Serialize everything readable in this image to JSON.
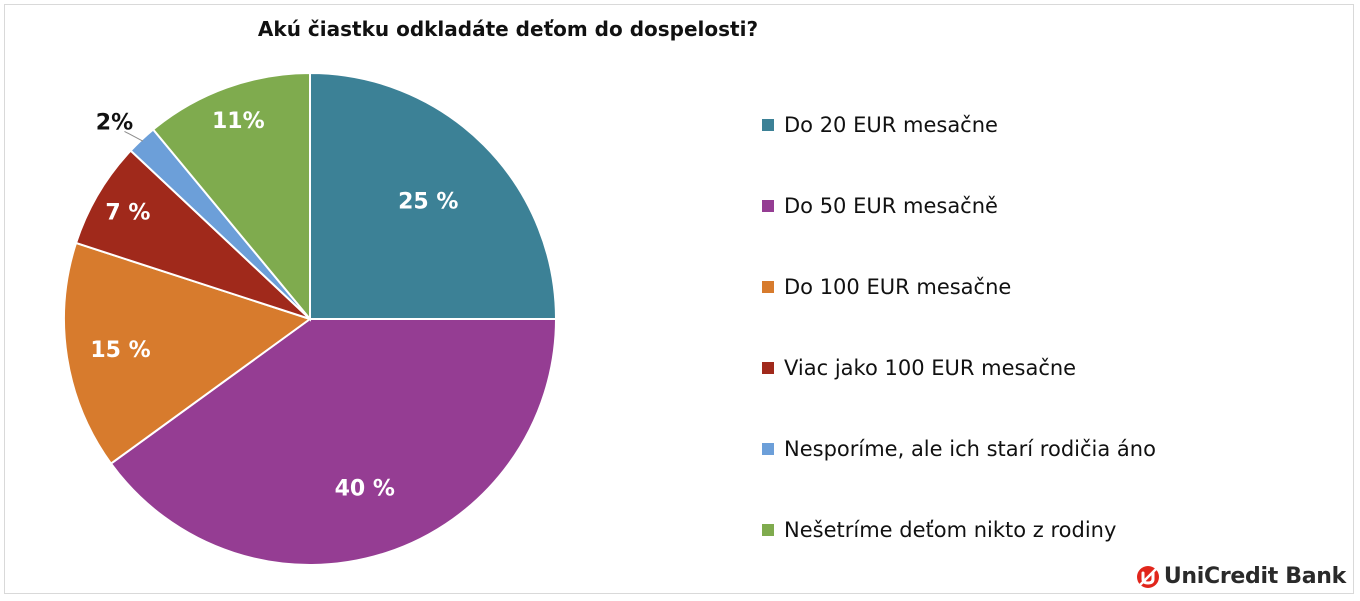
{
  "chart_data": {
    "type": "pie",
    "title": "Akú čiastku odkladáte deťom do dospelosti?",
    "categories": [
      "Do 20 EUR mesačne",
      "Do 50 EUR mesačně",
      "Do 100 EUR mesačne",
      "Viac jako 100 EUR mesačne",
      "Nesporíme, ale ich starí rodičia áno",
      "Nešetríme deťom nikto z rodiny"
    ],
    "values": [
      25,
      40,
      15,
      7,
      2,
      11
    ],
    "data_labels": [
      "25 %",
      "40 %",
      "15 %",
      "7 %",
      "2%",
      "11%"
    ],
    "colors": [
      "#3c8196",
      "#953d93",
      "#d77b2d",
      "#a0291b",
      "#6c9fd9",
      "#7fab4e"
    ],
    "legend_placement": "right"
  },
  "brand": {
    "name": "UniCredit Bank",
    "color": "#e1261c",
    "icon": "unicredit-logo-icon"
  }
}
